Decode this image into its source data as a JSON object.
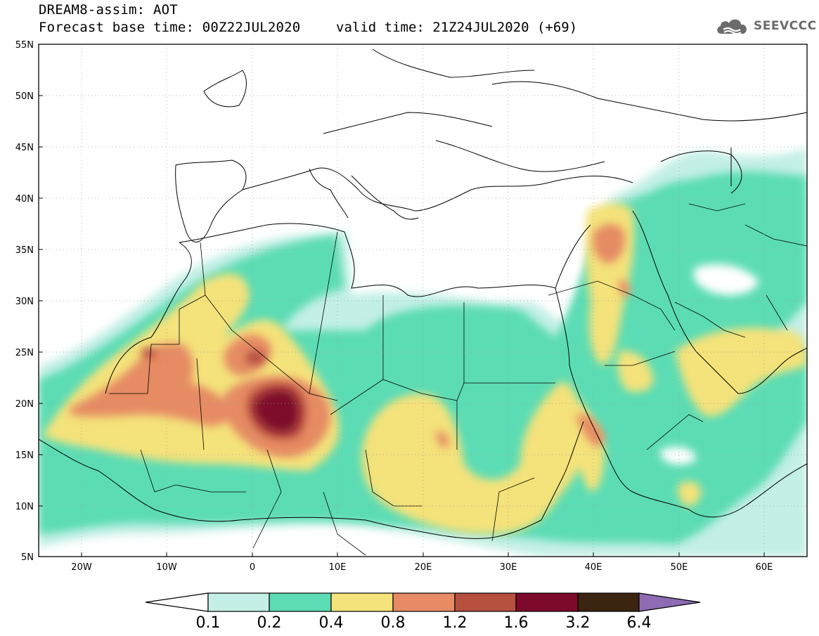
{
  "header": {
    "title": "DREAM8-assim: AOT",
    "base_time": "Forecast base time: 00Z22JUL2020",
    "valid_time": "valid time: 21Z24JUL2020 (+69)"
  },
  "logo": {
    "text": "SEEVCCC",
    "icon": "cloud-icon"
  },
  "map": {
    "lon_range": [
      -25,
      65
    ],
    "lat_range": [
      5,
      55
    ],
    "lat_ticks": [
      "55N",
      "50N",
      "45N",
      "40N",
      "35N",
      "30N",
      "25N",
      "20N",
      "15N",
      "10N",
      "5N"
    ],
    "lon_ticks": [
      "20W",
      "10W",
      "0",
      "10E",
      "20E",
      "30E",
      "40E",
      "50E",
      "60E"
    ]
  },
  "colorbar": {
    "labels": [
      "0.1",
      "0.2",
      "0.4",
      "0.8",
      "1.2",
      "1.6",
      "3.2",
      "6.4"
    ],
    "colors": [
      "#ffffff",
      "#c3efe6",
      "#5bdcb4",
      "#f4e27a",
      "#e68b64",
      "#b6503f",
      "#7d0a2a",
      "#3b2410",
      "#8e6bb3"
    ]
  }
}
